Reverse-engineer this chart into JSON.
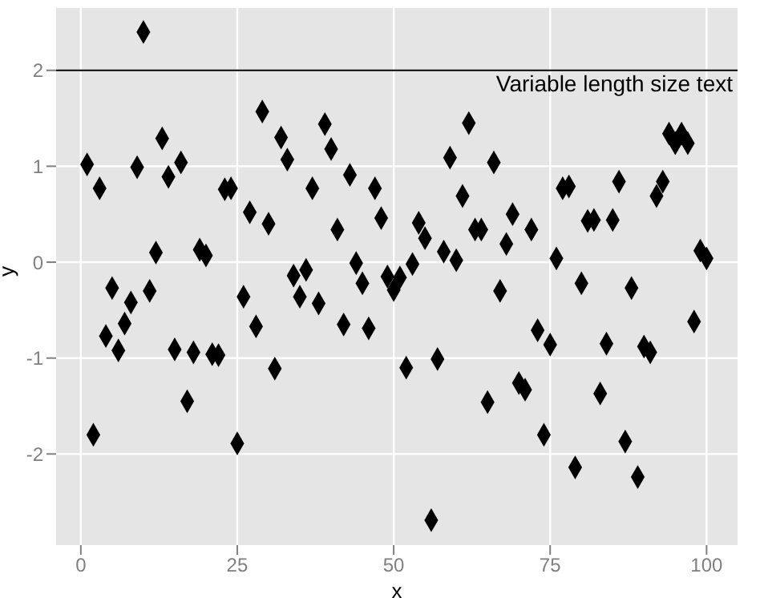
{
  "chart_data": {
    "type": "scatter",
    "xlabel": "x",
    "ylabel": "y",
    "x": [
      1,
      2,
      3,
      4,
      5,
      6,
      7,
      8,
      9,
      10,
      11,
      12,
      13,
      14,
      15,
      16,
      17,
      18,
      19,
      20,
      21,
      22,
      23,
      24,
      25,
      26,
      27,
      28,
      29,
      30,
      31,
      32,
      33,
      34,
      35,
      36,
      37,
      38,
      39,
      40,
      41,
      42,
      43,
      44,
      45,
      46,
      47,
      48,
      49,
      50,
      51,
      52,
      53,
      54,
      55,
      56,
      57,
      58,
      59,
      60,
      61,
      62,
      63,
      64,
      65,
      66,
      67,
      68,
      69,
      70,
      71,
      72,
      73,
      74,
      75,
      76,
      77,
      78,
      79,
      80,
      81,
      82,
      83,
      84,
      85,
      86,
      87,
      88,
      89,
      90,
      91,
      92,
      93,
      94,
      95,
      96,
      97,
      98,
      99,
      100
    ],
    "series": [
      {
        "color": "#000000",
        "values": [
          1.02,
          -1.8,
          0.77,
          -0.77,
          -0.27,
          -0.92,
          -0.64,
          -0.42,
          0.99,
          2.4,
          -0.3,
          0.1,
          1.29,
          0.89,
          -0.91,
          1.04,
          -1.45,
          -0.94,
          0.13,
          0.07,
          -0.96,
          -0.97,
          0.76,
          0.77,
          -1.89,
          -0.36,
          0.52,
          -0.67,
          1.57,
          0.4,
          -1.11,
          1.3,
          1.07,
          -0.14,
          -0.36,
          -0.08,
          0.77,
          -0.43,
          1.44,
          1.18,
          0.34,
          -0.65,
          0.91,
          -0.01,
          -0.22,
          -0.69,
          0.77,
          0.46,
          -0.15,
          -0.29,
          -0.16,
          -1.1,
          -0.02,
          0.41,
          0.25,
          -2.69,
          -1.01,
          0.11,
          1.09,
          0.02,
          0.69,
          1.45,
          0.34,
          0.34,
          -1.46,
          1.04,
          -0.3,
          0.19,
          0.5,
          -1.26,
          -1.33,
          0.34,
          -0.71,
          -1.8,
          -0.86,
          0.04,
          0.77,
          0.79,
          -2.14,
          -0.22,
          0.43,
          0.44,
          -1.37,
          -0.85,
          0.44,
          0.84,
          -1.87,
          -0.27,
          -2.24,
          -0.88,
          -0.94,
          0.69,
          0.84,
          1.34,
          1.24,
          1.34,
          1.24,
          -0.62,
          0.12,
          0.04
        ]
      }
    ],
    "xlim": [
      -3.95,
      104.95
    ],
    "xticks": [
      0,
      25,
      50,
      75,
      100
    ],
    "ylim": [
      -2.95,
      2.65
    ],
    "yticks": [
      -2,
      -1,
      0,
      1,
      2
    ],
    "grid": true,
    "marker": "diamond",
    "ref_lines": [
      {
        "axis": "y",
        "value": 2,
        "label": "Variable length size text",
        "color": "#000000"
      }
    ]
  }
}
